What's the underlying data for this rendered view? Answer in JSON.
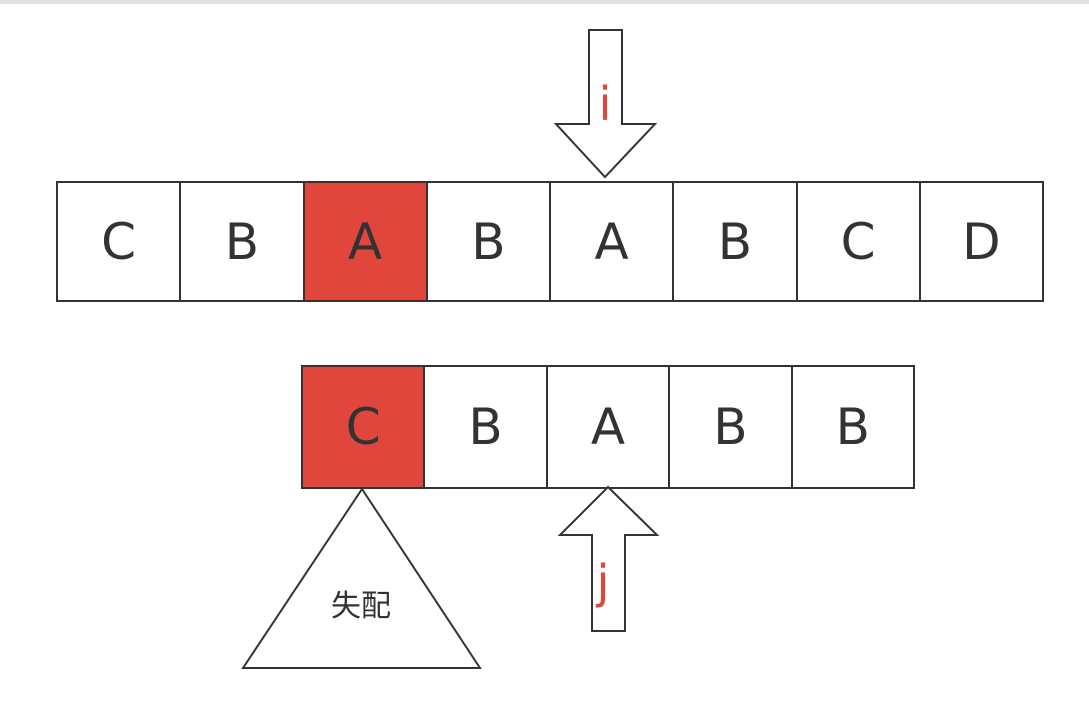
{
  "colors": {
    "highlight": "#e0463c",
    "stroke": "#333333",
    "pointer_label": "#e0463c"
  },
  "text_string": [
    "C",
    "B",
    "A",
    "B",
    "A",
    "B",
    "C",
    "D"
  ],
  "text_highlight_index": 2,
  "pattern_string": [
    "C",
    "B",
    "A",
    "B",
    "B"
  ],
  "pattern_highlight_index": 0,
  "pointer_i": {
    "label": "i",
    "cell_index": 4
  },
  "pointer_j": {
    "label": "j",
    "cell_index": 2
  },
  "mismatch_label": "失配"
}
